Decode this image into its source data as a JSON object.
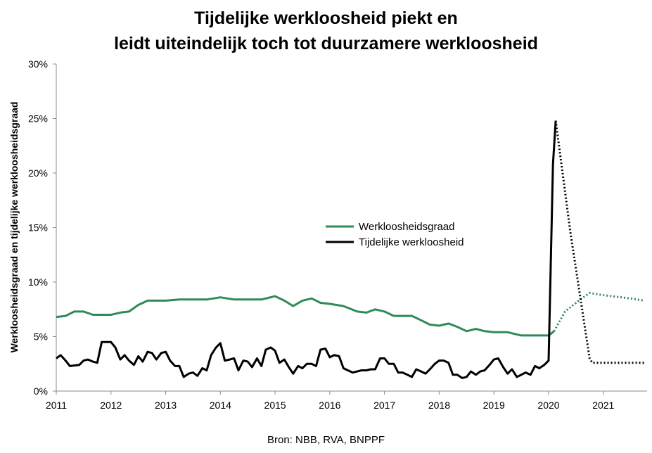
{
  "chart_data": {
    "type": "line",
    "title_line1": "Tijdelijke werkloosheid piekt en",
    "title_line2": "leidt uiteindelijk toch tot duurzamere werkloosheid",
    "ylabel": "Werkloosheidsgraad en tijdelijke werkloosheidsgraad",
    "xlabel": "",
    "source": "Bron: NBB, RVA, BNPPF",
    "x_tick_labels": [
      "2011",
      "2012",
      "2013",
      "2014",
      "2015",
      "2016",
      "2017",
      "2018",
      "2019",
      "2020",
      "2021"
    ],
    "y_tick_labels": [
      "0%",
      "5%",
      "10%",
      "15%",
      "20%",
      "25%",
      "30%"
    ],
    "ylim": [
      0,
      30
    ],
    "xlim": [
      2011.0,
      2021.8
    ],
    "grid": false,
    "legend_position": "center",
    "legend": [
      "Werkloosheidsgraad",
      "Tijdelijke werkloosheid"
    ],
    "series": [
      {
        "name": "Werkloosheidsgraad",
        "color": "#2e8b57",
        "x": [
          2011.0,
          2011.17,
          2011.33,
          2011.5,
          2011.67,
          2011.83,
          2012.0,
          2012.17,
          2012.33,
          2012.5,
          2012.67,
          2012.83,
          2013.0,
          2013.25,
          2013.5,
          2013.75,
          2014.0,
          2014.25,
          2014.5,
          2014.75,
          2015.0,
          2015.17,
          2015.33,
          2015.5,
          2015.67,
          2015.83,
          2016.0,
          2016.25,
          2016.5,
          2016.67,
          2016.83,
          2017.0,
          2017.17,
          2017.33,
          2017.5,
          2017.67,
          2017.83,
          2018.0,
          2018.17,
          2018.33,
          2018.5,
          2018.67,
          2018.83,
          2019.0,
          2019.25,
          2019.5,
          2019.75,
          2020.0,
          2020.1
        ],
        "y": [
          6.8,
          6.9,
          7.3,
          7.3,
          7.0,
          7.0,
          7.0,
          7.2,
          7.3,
          7.9,
          8.3,
          8.3,
          8.3,
          8.4,
          8.4,
          8.4,
          8.6,
          8.4,
          8.4,
          8.4,
          8.7,
          8.3,
          7.8,
          8.3,
          8.5,
          8.1,
          8.0,
          7.8,
          7.3,
          7.2,
          7.5,
          7.3,
          6.9,
          6.9,
          6.9,
          6.5,
          6.1,
          6.0,
          6.2,
          5.9,
          5.5,
          5.7,
          5.5,
          5.4,
          5.4,
          5.1,
          5.1,
          5.1,
          5.5
        ],
        "forecast": {
          "x": [
            2020.1,
            2020.3,
            2020.55,
            2020.75,
            2021.0,
            2021.5,
            2021.75
          ],
          "y": [
            5.5,
            7.3,
            8.3,
            9.0,
            8.8,
            8.5,
            8.3
          ]
        }
      },
      {
        "name": "Tijdelijke werkloosheid",
        "color": "#000000",
        "x": [
          2011.0,
          2011.08,
          2011.17,
          2011.25,
          2011.42,
          2011.5,
          2011.58,
          2011.67,
          2011.75,
          2011.83,
          2011.92,
          2012.0,
          2012.08,
          2012.17,
          2012.25,
          2012.33,
          2012.42,
          2012.5,
          2012.58,
          2012.67,
          2012.75,
          2012.83,
          2012.92,
          2013.0,
          2013.08,
          2013.17,
          2013.25,
          2013.33,
          2013.42,
          2013.5,
          2013.58,
          2013.67,
          2013.75,
          2013.83,
          2013.92,
          2014.0,
          2014.08,
          2014.17,
          2014.25,
          2014.33,
          2014.42,
          2014.5,
          2014.58,
          2014.67,
          2014.75,
          2014.83,
          2014.92,
          2015.0,
          2015.08,
          2015.17,
          2015.25,
          2015.33,
          2015.42,
          2015.5,
          2015.58,
          2015.67,
          2015.75,
          2015.83,
          2015.92,
          2016.0,
          2016.08,
          2016.17,
          2016.25,
          2016.33,
          2016.42,
          2016.5,
          2016.58,
          2016.67,
          2016.75,
          2016.83,
          2016.92,
          2017.0,
          2017.08,
          2017.17,
          2017.25,
          2017.33,
          2017.42,
          2017.5,
          2017.58,
          2017.67,
          2017.75,
          2017.83,
          2017.92,
          2018.0,
          2018.08,
          2018.17,
          2018.25,
          2018.33,
          2018.42,
          2018.5,
          2018.58,
          2018.67,
          2018.75,
          2018.83,
          2018.92,
          2019.0,
          2019.08,
          2019.17,
          2019.25,
          2019.33,
          2019.42,
          2019.5,
          2019.58,
          2019.67,
          2019.75,
          2019.83,
          2019.92,
          2020.0,
          2020.08,
          2020.13
        ],
        "y": [
          3.0,
          3.3,
          2.8,
          2.3,
          2.4,
          2.8,
          2.9,
          2.7,
          2.6,
          4.5,
          4.5,
          4.5,
          4.0,
          2.9,
          3.3,
          2.8,
          2.4,
          3.2,
          2.7,
          3.6,
          3.5,
          2.9,
          3.5,
          3.6,
          2.8,
          2.3,
          2.3,
          1.3,
          1.6,
          1.7,
          1.4,
          2.1,
          1.9,
          3.3,
          4.0,
          4.4,
          2.8,
          2.9,
          3.0,
          1.9,
          2.8,
          2.7,
          2.2,
          3.0,
          2.3,
          3.8,
          4.0,
          3.7,
          2.6,
          2.9,
          2.2,
          1.6,
          2.3,
          2.1,
          2.5,
          2.5,
          2.3,
          3.8,
          3.9,
          3.1,
          3.3,
          3.2,
          2.1,
          1.9,
          1.7,
          1.8,
          1.9,
          1.9,
          2.0,
          2.0,
          3.0,
          3.0,
          2.5,
          2.5,
          1.7,
          1.7,
          1.5,
          1.3,
          2.0,
          1.8,
          1.6,
          2.0,
          2.5,
          2.8,
          2.8,
          2.6,
          1.5,
          1.5,
          1.2,
          1.3,
          1.8,
          1.5,
          1.8,
          1.9,
          2.4,
          2.9,
          3.0,
          2.2,
          1.6,
          2.0,
          1.3,
          1.5,
          1.7,
          1.5,
          2.3,
          2.1,
          2.4,
          2.8,
          20.8,
          24.8
        ],
        "forecast": {
          "x": [
            2020.13,
            2020.4,
            2020.75,
            2020.8,
            2021.75
          ],
          "y": [
            24.8,
            14.5,
            3.0,
            2.6,
            2.6
          ]
        }
      }
    ]
  }
}
